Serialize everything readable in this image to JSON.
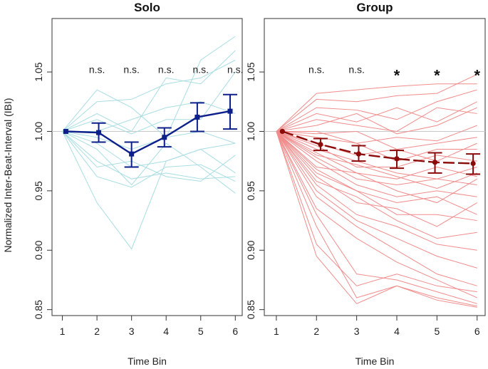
{
  "figure": {
    "ylabel": "Normalized Inter-Beat-Interval (IBI)",
    "xlabel": "Time Bin"
  },
  "chart_data": [
    {
      "type": "line",
      "title": "Solo",
      "xlabel": "Time Bin",
      "ylabel": "Normalized Inter-Beat-Interval (IBI)",
      "x": [
        1,
        2,
        3,
        4,
        5,
        6
      ],
      "xlim": [
        0.7,
        6.2
      ],
      "ylim": [
        0.845,
        1.095
      ],
      "xticks": [
        1,
        2,
        3,
        4,
        5,
        6
      ],
      "yticks": [
        0.85,
        0.9,
        0.95,
        1.0,
        1.05
      ],
      "ytick_labels": [
        "0.85",
        "0.90",
        "0.95",
        "1.00",
        "1.05"
      ],
      "reference_line": 1.0,
      "significance": [
        "n.s.",
        "n.s.",
        "n.s.",
        "n.s.",
        "n.s."
      ],
      "significance_y": 1.049,
      "mean_series": {
        "marker": "square",
        "x": [
          1.1,
          2.05,
          3.0,
          3.95,
          4.9,
          5.85
        ],
        "values": [
          1.0,
          0.999,
          0.981,
          0.995,
          1.012,
          1.017
        ],
        "err_low": [
          1.0,
          0.991,
          0.97,
          0.987,
          1.0,
          1.002
        ],
        "err_high": [
          1.0,
          1.007,
          0.991,
          1.003,
          1.024,
          1.031
        ]
      },
      "individual_series": [
        [
          1.0,
          1.035,
          1.02,
          0.995,
          1.06,
          1.08
        ],
        [
          1.0,
          1.025,
          1.027,
          1.04,
          1.045,
          1.06
        ],
        [
          1.0,
          1.015,
          1.0,
          1.045,
          1.04,
          1.068
        ],
        [
          1.0,
          1.01,
          0.998,
          1.01,
          1.01,
          1.05
        ],
        [
          1.0,
          1.0,
          1.01,
          1.02,
          1.025,
          1.015
        ],
        [
          1.0,
          0.995,
          0.985,
          0.995,
          1.0,
          0.99
        ],
        [
          1.0,
          0.99,
          0.97,
          0.975,
          0.985,
          0.965
        ],
        [
          1.0,
          0.985,
          0.955,
          0.99,
          0.97,
          0.948
        ],
        [
          1.0,
          0.975,
          0.96,
          0.965,
          0.96,
          0.962
        ],
        [
          1.0,
          0.97,
          0.975,
          0.962,
          0.958,
          0.98
        ],
        [
          1.0,
          0.962,
          0.953,
          0.97,
          0.972,
          0.958
        ],
        [
          1.0,
          0.94,
          0.901,
          0.975,
          0.985,
          0.99
        ]
      ],
      "colors": {
        "mean": "#0d1f8a",
        "individual": "#a9dde3",
        "reference": "#c8c8c8"
      }
    },
    {
      "type": "line",
      "title": "Group",
      "xlabel": "Time Bin",
      "ylabel": "",
      "x": [
        1,
        2,
        3,
        4,
        5,
        6
      ],
      "xlim": [
        0.7,
        6.2
      ],
      "ylim": [
        0.845,
        1.095
      ],
      "xticks": [
        1,
        2,
        3,
        4,
        5,
        6
      ],
      "yticks": [
        0.85,
        0.9,
        0.95,
        1.0,
        1.05
      ],
      "ytick_labels": [
        "0.85",
        "0.90",
        "0.95",
        "1.00",
        "1.05"
      ],
      "reference_line": 1.0,
      "significance": [
        "n.s.",
        "n.s.",
        "*",
        "*",
        "*"
      ],
      "significance_y": 1.049,
      "mean_series": {
        "marker": "circle",
        "x": [
          1.15,
          2.1,
          3.05,
          4.0,
          4.95,
          5.9
        ],
        "values": [
          1.0,
          0.989,
          0.981,
          0.977,
          0.974,
          0.973
        ],
        "err_low": [
          1.0,
          0.984,
          0.975,
          0.969,
          0.965,
          0.964
        ],
        "err_high": [
          1.0,
          0.994,
          0.988,
          0.984,
          0.982,
          0.981
        ]
      },
      "individual_series": [
        [
          1.0,
          1.032,
          1.035,
          1.038,
          1.04,
          1.04
        ],
        [
          1.0,
          1.027,
          1.025,
          1.03,
          1.032,
          1.048
        ],
        [
          1.0,
          1.02,
          1.018,
          1.01,
          1.025,
          1.035
        ],
        [
          1.0,
          1.015,
          1.008,
          1.02,
          1.008,
          1.025
        ],
        [
          1.0,
          1.01,
          1.005,
          1.0,
          1.02,
          1.015
        ],
        [
          1.0,
          1.005,
          1.015,
          0.998,
          1.005,
          1.02
        ],
        [
          1.0,
          1.0,
          0.99,
          0.995,
          0.992,
          1.005
        ],
        [
          1.0,
          0.998,
          1.0,
          0.985,
          0.99,
          0.995
        ],
        [
          1.0,
          0.995,
          0.99,
          0.975,
          0.985,
          0.985
        ],
        [
          1.0,
          0.99,
          0.98,
          0.985,
          0.975,
          0.99
        ],
        [
          1.0,
          0.988,
          0.97,
          0.97,
          0.98,
          0.975
        ],
        [
          1.0,
          0.985,
          0.975,
          0.965,
          0.96,
          0.97
        ],
        [
          1.0,
          0.982,
          0.965,
          0.96,
          0.97,
          0.962
        ],
        [
          1.0,
          0.98,
          0.972,
          0.962,
          0.952,
          0.965
        ],
        [
          1.0,
          0.978,
          0.96,
          0.955,
          0.96,
          0.955
        ],
        [
          1.0,
          0.975,
          0.955,
          0.945,
          0.95,
          0.945
        ],
        [
          1.0,
          0.97,
          0.965,
          0.95,
          0.94,
          0.96
        ],
        [
          1.0,
          0.968,
          0.95,
          0.94,
          0.945,
          0.93
        ],
        [
          1.0,
          0.965,
          0.95,
          0.93,
          0.93,
          0.925
        ],
        [
          1.0,
          0.962,
          0.94,
          0.935,
          0.92,
          0.94
        ],
        [
          1.0,
          0.958,
          0.945,
          0.925,
          0.91,
          0.915
        ],
        [
          1.0,
          0.955,
          0.93,
          0.92,
          0.905,
          0.9
        ],
        [
          1.0,
          0.95,
          0.925,
          0.91,
          0.895,
          0.885
        ],
        [
          1.0,
          0.945,
          0.92,
          0.9,
          0.88,
          0.87
        ],
        [
          1.0,
          0.935,
          0.91,
          0.89,
          0.875,
          0.86
        ],
        [
          1.0,
          0.93,
          0.88,
          0.875,
          0.865,
          0.855
        ],
        [
          1.0,
          0.92,
          0.86,
          0.87,
          0.86,
          0.853
        ],
        [
          1.0,
          0.905,
          0.87,
          0.88,
          0.87,
          0.865
        ],
        [
          1.0,
          0.895,
          0.855,
          0.87,
          0.858,
          0.852
        ]
      ],
      "colors": {
        "mean": "#8b0a0a",
        "individual": "#f08c8c",
        "reference": "#c8c8c8"
      }
    }
  ]
}
